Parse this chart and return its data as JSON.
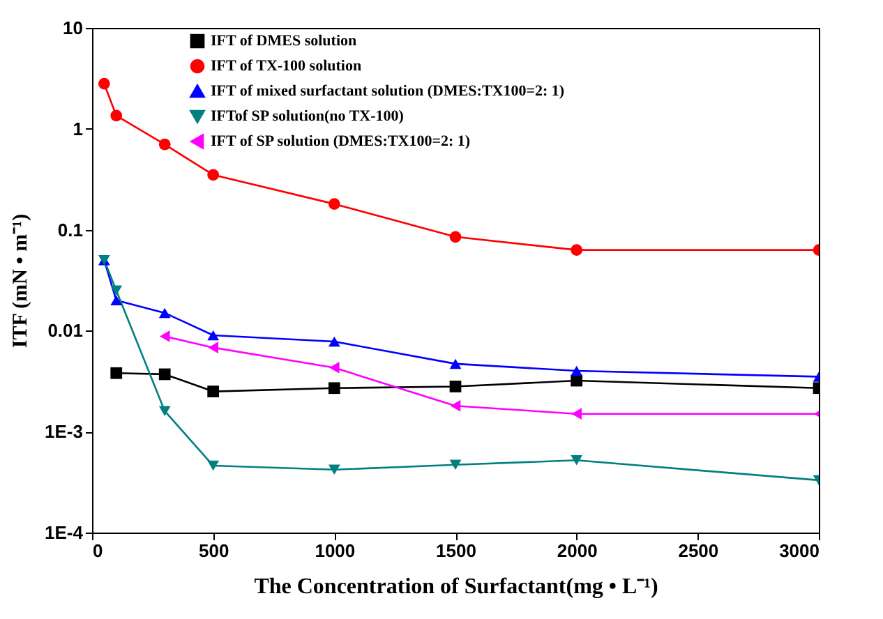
{
  "chart_data": {
    "type": "line",
    "xlabel": "The Concentration of Surfactant(mg • L⁻¹)",
    "ylabel": "ITF (mN • m⁻¹)",
    "log": "y",
    "xlim": [
      0,
      3000
    ],
    "xticks": [
      0,
      500,
      1000,
      1500,
      2000,
      2500,
      3000
    ],
    "ylim": [
      0.0001,
      10
    ],
    "yticks": [
      10,
      1,
      0.1,
      0.01,
      {
        "value": 0.001,
        "label": "1E-3"
      },
      {
        "value": 0.0001,
        "label": "1E-4"
      }
    ],
    "grid": false,
    "legend": "top",
    "line_style": "solid",
    "series": [
      {
        "name": "IFT of DMES solution",
        "color": "#000000",
        "marker": "square",
        "x": [
          100,
          300,
          500,
          1000,
          1500,
          2000,
          3000
        ],
        "values": [
          0.0038,
          0.0037,
          0.0025,
          0.0027,
          0.0028,
          0.0032,
          0.0027
        ]
      },
      {
        "name": "IFT of TX-100 solution",
        "color": "#ff0000",
        "marker": "circle",
        "x": [
          50,
          100,
          300,
          500,
          1000,
          1500,
          2000,
          3000
        ],
        "values": [
          2.8,
          1.35,
          0.7,
          0.35,
          0.18,
          0.085,
          0.063,
          0.063
        ]
      },
      {
        "name": "IFT of mixed surfactant solution (DMES:TX100=2: 1)",
        "color": "#0000ff",
        "marker": "triangle-up",
        "x": [
          50,
          100,
          300,
          500,
          1000,
          1500,
          2000,
          3000
        ],
        "values": [
          0.05,
          0.02,
          0.015,
          0.009,
          0.0078,
          0.0047,
          0.004,
          0.0035
        ]
      },
      {
        "name": "IFTof SP solution(no TX-100)",
        "color": "#008080",
        "marker": "triangle-down",
        "x": [
          50,
          100,
          300,
          500,
          1000,
          1500,
          2000,
          3000
        ],
        "values": [
          0.05,
          0.025,
          0.0016,
          0.00046,
          0.00042,
          0.00047,
          0.00052,
          0.00033
        ]
      },
      {
        "name": "IFT of SP solution (DMES:TX100=2: 1)",
        "color": "#ff00ff",
        "marker": "triangle-left",
        "x": [
          300,
          500,
          1000,
          1500,
          2000,
          3000
        ],
        "values": [
          0.0088,
          0.0068,
          0.0043,
          0.0018,
          0.0015,
          0.0015
        ]
      }
    ]
  }
}
